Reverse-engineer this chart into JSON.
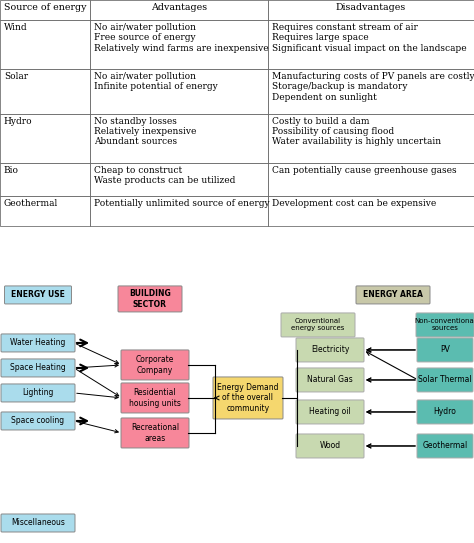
{
  "table": {
    "headers": [
      "Source of energy",
      "Advantages",
      "Disadvantages"
    ],
    "rows": [
      {
        "source": "Wind",
        "advantages": "No air/water pollution\nFree source of energy\nRelatively wind farms are inexpensive",
        "disadvantages": "Requires constant stream of air\nRequires large space\nSignificant visual impact on the landscape"
      },
      {
        "source": "Solar",
        "advantages": "No air/water pollution\nInfinite potential of energy",
        "disadvantages": "Manufacturing costs of PV panels are costly\nStorage/backup is mandatory\nDependent on sunlight"
      },
      {
        "source": "Hydro",
        "advantages": "No standby losses\nRelatively inexpensive\nAbundant sources",
        "disadvantages": "Costly to build a dam\nPossibility of causing flood\nWater availability is highly uncertain"
      },
      {
        "source": "Bio",
        "advantages": "Cheap to construct\nWaste products can be utilized",
        "disadvantages": "Can potentially cause greenhouse gases"
      },
      {
        "source": "Geothermal",
        "advantages": "Potentially unlimited source of energy",
        "disadvantages": "Development cost can be expensive"
      }
    ]
  },
  "diagram": {
    "energy_use_label": "ENERGY USE",
    "energy_use_color": "#aadcec",
    "building_sector_label": "BUILDING\nSECTOR",
    "building_sector_color": "#f7879a",
    "energy_area_label": "ENERGY AREA",
    "energy_area_color": "#c8c8a9",
    "left_boxes": [
      "Water Heating",
      "Space Heating",
      "Lighting",
      "Space cooling",
      "Miscellaneous"
    ],
    "left_box_color": "#aadcec",
    "middle_boxes": [
      "Corporate\nCompany",
      "Residential\nhousing units",
      "Recreational\nareas"
    ],
    "middle_box_color": "#f7879a",
    "center_box": "Energy Demand\nof the overall\ncommunity",
    "center_box_color": "#f5d76e",
    "conventional_label": "Conventional\nenergy sources",
    "conventional_color": "#c8d9b0",
    "non_conventional_label": "Non-conventional\nsources",
    "non_conventional_color": "#5bbcb0",
    "right_left_boxes": [
      "Electricity",
      "Natural Gas",
      "Heating oil",
      "Wood"
    ],
    "right_left_box_color": "#c8d9b0",
    "right_right_boxes": [
      "PV",
      "Solar Thermal",
      "Hydro",
      "Geothermal"
    ],
    "right_right_box_color": "#5bbcb0"
  },
  "bg_color": "#ffffff",
  "text_color": "#000000",
  "font_size": 6.5
}
